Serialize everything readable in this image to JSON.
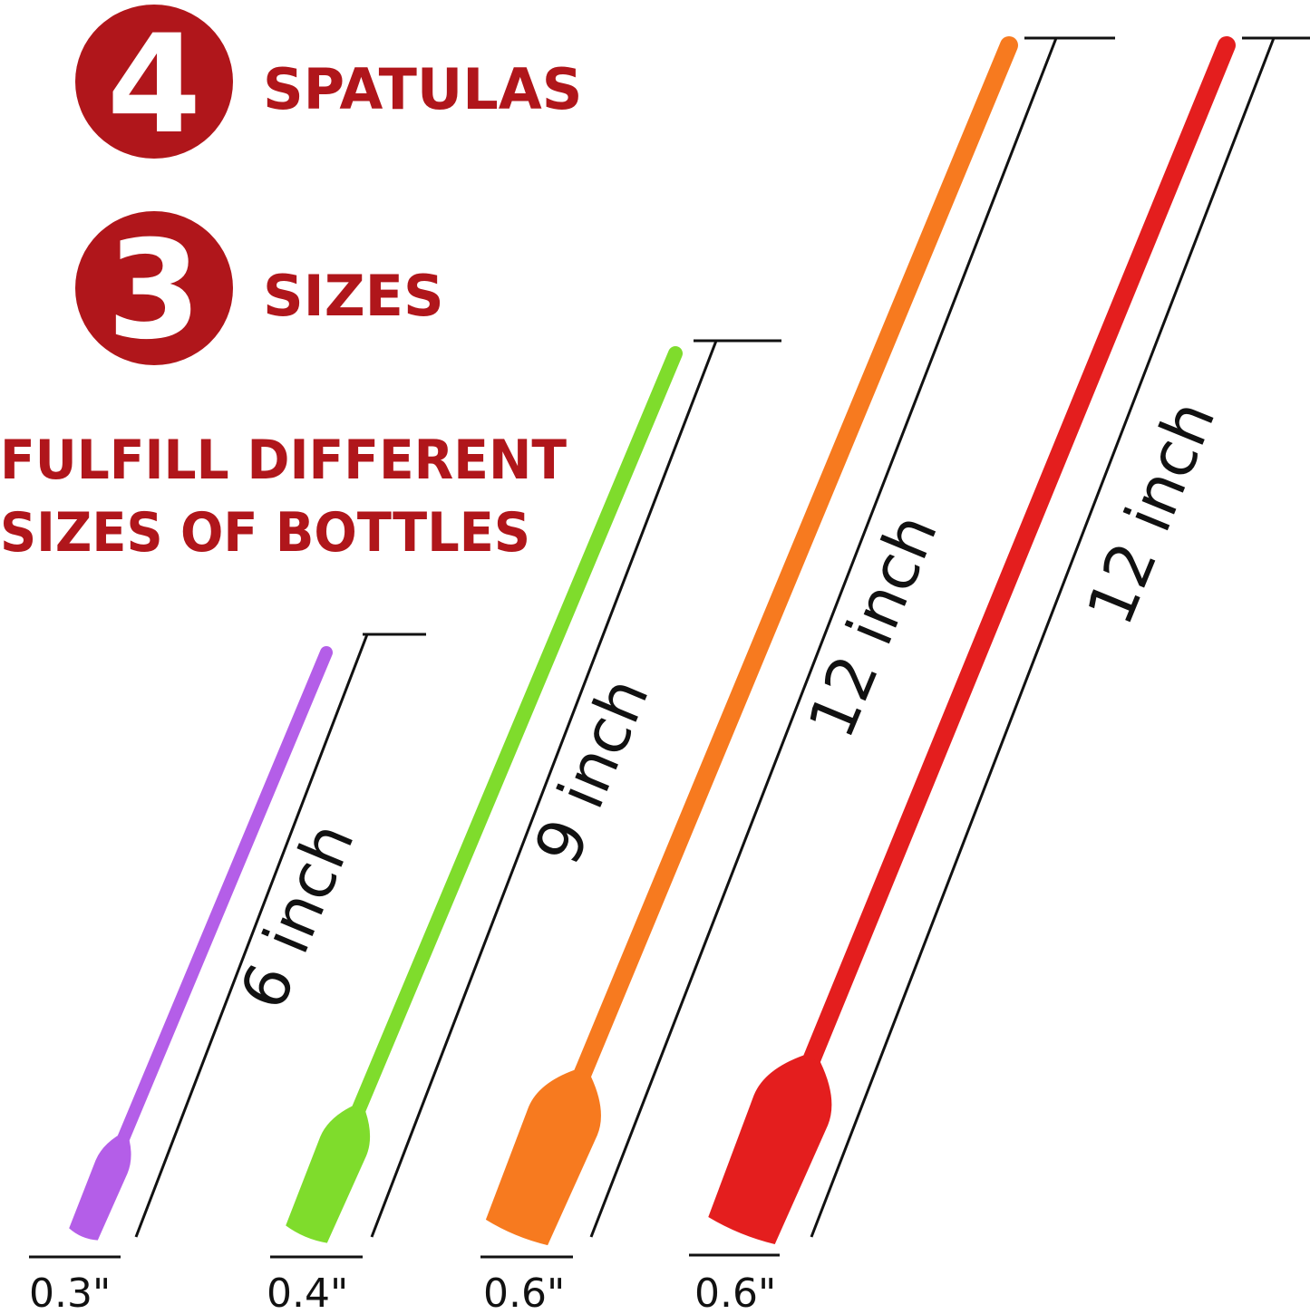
{
  "header": {
    "count_number": "4",
    "count_label": "SPATULAS",
    "sizes_number": "3",
    "sizes_label": "SIZES",
    "tagline_line1": "FULFILL DIFFERENT",
    "tagline_line2": "SIZES OF BOTTLES",
    "accent_color": "#b0161b"
  },
  "spatulas": [
    {
      "color": "#b45ee8",
      "length_label": "6 inch",
      "width_label": "0.3\""
    },
    {
      "color": "#7fdc2c",
      "length_label": "9 inch",
      "width_label": "0.4\""
    },
    {
      "color": "#f77a1f",
      "length_label": "12 inch",
      "width_label": "0.6\""
    },
    {
      "color": "#e41e1e",
      "length_label": "12 inch",
      "width_label": "0.6\""
    }
  ]
}
